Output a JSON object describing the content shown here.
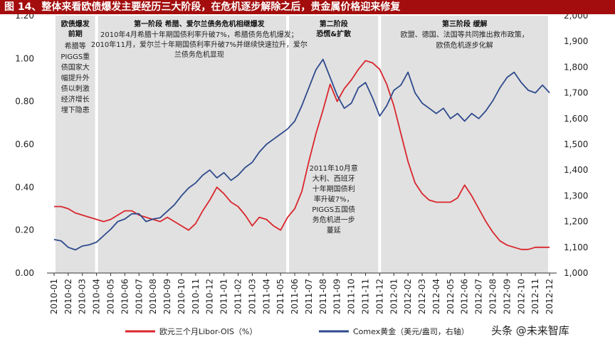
{
  "figure": {
    "title": "图 14、整体来看欧债爆发主要经历三大阶段，在危机逐步解除之后，贵金属价格迎来修复",
    "watermark": "头条 @未来智库"
  },
  "phases": [
    {
      "title": "欧债爆发前期",
      "lines": [
        "希腊等",
        "PIGGS重",
        "债国家大",
        "幅提升外",
        "债以刺激",
        "经济增长",
        "埋下隐患"
      ]
    },
    {
      "title": "第一阶段 希腊、爱尔兰债务危机相继爆发",
      "lines": [
        "2010年4月希腊十年期国债利率升破7%，希腊债务危机爆发；",
        "2010年11月，爱尔兰十年期国债利率升破7%并继续快速拉升，爱尔",
        "兰债务危机显现"
      ]
    },
    {
      "title": "第二阶段",
      "title2": "恐慌&扩散",
      "lines": [
        "2011年10月意",
        "大利、西班牙",
        "十年期国债利",
        "率升破7%，",
        "PIGGS五国债",
        "务危机进一步",
        "蔓延"
      ]
    },
    {
      "title": "第三阶段 缓解",
      "lines": [
        "欧盟、德国、法国等共同推出救市政策，",
        "欧债危机逐步化解"
      ]
    }
  ],
  "colors": {
    "libor": "#d9262c",
    "gold": "#2e4a8c",
    "phase_bg": "#e1e1e1",
    "title_bg": "#a30d0d"
  },
  "chart_data": {
    "type": "line",
    "x_categories": [
      "2010-01",
      "2010-02",
      "2010-03",
      "2010-04",
      "2010-05",
      "2010-06",
      "2010-07",
      "2010-08",
      "2010-09",
      "2010-10",
      "2010-11",
      "2010-12",
      "2011-01",
      "2011-02",
      "2011-03",
      "2011-04",
      "2011-05",
      "2011-06",
      "2011-07",
      "2011-08",
      "2011-09",
      "2011-10",
      "2011-11",
      "2011-12",
      "2012-01",
      "2012-02",
      "2012-03",
      "2012-04",
      "2012-05",
      "2012-06",
      "2012-07",
      "2012-08",
      "2012-09",
      "2012-10",
      "2012-11",
      "2012-12"
    ],
    "y_left": {
      "min": 0,
      "max": 1.2,
      "ticks": [
        "0.00",
        "0.20",
        "0.40",
        "0.60",
        "0.80",
        "1.00",
        "1.20"
      ]
    },
    "y_right": {
      "min": 1000,
      "max": 2000,
      "ticks": [
        "1,000",
        "1,100",
        "1,200",
        "1,300",
        "1,400",
        "1,500",
        "1,600",
        "1,700",
        "1,800",
        "1,900",
        "2,000"
      ]
    },
    "grid": false,
    "legend_position": "bottom",
    "phase_ranges": [
      [
        0,
        3
      ],
      [
        3,
        16.5
      ],
      [
        16.5,
        23
      ],
      [
        23,
        35
      ]
    ],
    "series": [
      {
        "name": "欧元三个月Libor-OIS（%）",
        "axis": "left",
        "points": [
          [
            0,
            0.31
          ],
          [
            0.5,
            0.31
          ],
          [
            1,
            0.3
          ],
          [
            1.5,
            0.28
          ],
          [
            2,
            0.27
          ],
          [
            2.5,
            0.26
          ],
          [
            3,
            0.25
          ],
          [
            3.5,
            0.24
          ],
          [
            4,
            0.25
          ],
          [
            4.5,
            0.27
          ],
          [
            5,
            0.29
          ],
          [
            5.5,
            0.29
          ],
          [
            6,
            0.27
          ],
          [
            6.5,
            0.26
          ],
          [
            7,
            0.25
          ],
          [
            7.5,
            0.24
          ],
          [
            8,
            0.26
          ],
          [
            8.5,
            0.24
          ],
          [
            9,
            0.22
          ],
          [
            9.5,
            0.2
          ],
          [
            10,
            0.23
          ],
          [
            10.5,
            0.29
          ],
          [
            11,
            0.34
          ],
          [
            11.5,
            0.4
          ],
          [
            12,
            0.37
          ],
          [
            12.5,
            0.33
          ],
          [
            13,
            0.31
          ],
          [
            13.5,
            0.27
          ],
          [
            14,
            0.22
          ],
          [
            14.5,
            0.26
          ],
          [
            15,
            0.25
          ],
          [
            15.5,
            0.22
          ],
          [
            16,
            0.2
          ],
          [
            16.5,
            0.26
          ],
          [
            17,
            0.3
          ],
          [
            17.5,
            0.38
          ],
          [
            18,
            0.52
          ],
          [
            18.5,
            0.65
          ],
          [
            19,
            0.76
          ],
          [
            19.5,
            0.88
          ],
          [
            20,
            0.8
          ],
          [
            20.5,
            0.86
          ],
          [
            21,
            0.9
          ],
          [
            21.5,
            0.95
          ],
          [
            22,
            0.99
          ],
          [
            22.5,
            0.98
          ],
          [
            23,
            0.95
          ],
          [
            23.5,
            0.88
          ],
          [
            24,
            0.78
          ],
          [
            24.5,
            0.65
          ],
          [
            25,
            0.52
          ],
          [
            25.5,
            0.42
          ],
          [
            26,
            0.37
          ],
          [
            26.5,
            0.34
          ],
          [
            27,
            0.33
          ],
          [
            27.5,
            0.33
          ],
          [
            28,
            0.33
          ],
          [
            28.5,
            0.35
          ],
          [
            29,
            0.41
          ],
          [
            29.5,
            0.36
          ],
          [
            30,
            0.3
          ],
          [
            30.5,
            0.24
          ],
          [
            31,
            0.19
          ],
          [
            31.5,
            0.15
          ],
          [
            32,
            0.13
          ],
          [
            32.5,
            0.12
          ],
          [
            33,
            0.11
          ],
          [
            33.5,
            0.11
          ],
          [
            34,
            0.12
          ],
          [
            34.5,
            0.12
          ],
          [
            35,
            0.12
          ]
        ]
      },
      {
        "name": "Comex黄金（美元/盎司，右轴）",
        "axis": "right",
        "points": [
          [
            0,
            1130
          ],
          [
            0.5,
            1125
          ],
          [
            1,
            1100
          ],
          [
            1.5,
            1090
          ],
          [
            2,
            1105
          ],
          [
            2.5,
            1110
          ],
          [
            3,
            1120
          ],
          [
            3.5,
            1145
          ],
          [
            4,
            1170
          ],
          [
            4.5,
            1200
          ],
          [
            5,
            1210
          ],
          [
            5.5,
            1230
          ],
          [
            6,
            1230
          ],
          [
            6.5,
            1200
          ],
          [
            7,
            1210
          ],
          [
            7.5,
            1215
          ],
          [
            8,
            1240
          ],
          [
            8.5,
            1265
          ],
          [
            9,
            1300
          ],
          [
            9.5,
            1330
          ],
          [
            10,
            1350
          ],
          [
            10.5,
            1380
          ],
          [
            11,
            1400
          ],
          [
            11.5,
            1370
          ],
          [
            12,
            1390
          ],
          [
            12.5,
            1360
          ],
          [
            13,
            1380
          ],
          [
            13.5,
            1410
          ],
          [
            14,
            1430
          ],
          [
            14.5,
            1470
          ],
          [
            15,
            1500
          ],
          [
            15.5,
            1520
          ],
          [
            16,
            1540
          ],
          [
            16.5,
            1560
          ],
          [
            17,
            1590
          ],
          [
            17.5,
            1650
          ],
          [
            18,
            1720
          ],
          [
            18.5,
            1790
          ],
          [
            19,
            1830
          ],
          [
            19.5,
            1760
          ],
          [
            20,
            1690
          ],
          [
            20.5,
            1640
          ],
          [
            21,
            1660
          ],
          [
            21.5,
            1720
          ],
          [
            22,
            1740
          ],
          [
            22.5,
            1680
          ],
          [
            23,
            1610
          ],
          [
            23.5,
            1650
          ],
          [
            24,
            1710
          ],
          [
            24.5,
            1730
          ],
          [
            25,
            1780
          ],
          [
            25.5,
            1700
          ],
          [
            26,
            1660
          ],
          [
            26.5,
            1640
          ],
          [
            27,
            1620
          ],
          [
            27.5,
            1640
          ],
          [
            28,
            1600
          ],
          [
            28.5,
            1620
          ],
          [
            29,
            1590
          ],
          [
            29.5,
            1620
          ],
          [
            30,
            1600
          ],
          [
            30.5,
            1630
          ],
          [
            31,
            1670
          ],
          [
            31.5,
            1720
          ],
          [
            32,
            1760
          ],
          [
            32.5,
            1780
          ],
          [
            33,
            1740
          ],
          [
            33.5,
            1710
          ],
          [
            34,
            1700
          ],
          [
            34.5,
            1730
          ],
          [
            35,
            1700
          ]
        ]
      }
    ]
  }
}
